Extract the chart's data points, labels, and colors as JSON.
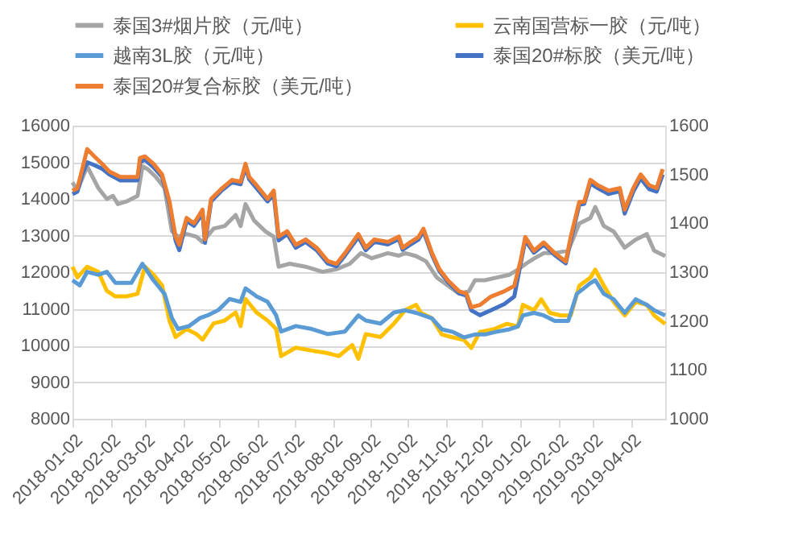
{
  "chart_data": {
    "type": "line",
    "xlim": [
      "2018-01-02",
      "2019-04-30"
    ],
    "xticks": [
      "2018-01-02",
      "2018-02-02",
      "2018-03-02",
      "2018-04-02",
      "2018-05-02",
      "2018-06-02",
      "2018-07-02",
      "2018-08-02",
      "2018-09-02",
      "2018-10-02",
      "2018-11-02",
      "2018-12-02",
      "2019-01-02",
      "2019-02-02",
      "2019-03-02",
      "2019-04-02"
    ],
    "ylim": [
      8000,
      16000
    ],
    "yticks": [
      8000,
      9000,
      10000,
      11000,
      12000,
      13000,
      14000,
      15000,
      16000
    ],
    "y2lim": [
      1000,
      1600
    ],
    "y2ticks": [
      1000,
      1100,
      1200,
      1300,
      1400,
      1500,
      1600
    ],
    "grid": "y",
    "legend": "top",
    "marker": "none",
    "line_style": "solid",
    "series": [
      {
        "name": "泰国3#烟片胶（元/吨）",
        "color": "#a5a5a5",
        "x": [
          "2018-01-02",
          "2018-01-06",
          "2018-01-14",
          "2018-01-23",
          "2018-01-30",
          "2018-02-04",
          "2018-02-08",
          "2018-02-15",
          "2018-02-24",
          "2018-02-28",
          "2018-03-04",
          "2018-03-11",
          "2018-03-18",
          "2018-03-24",
          "2018-03-29",
          "2018-04-05",
          "2018-04-13",
          "2018-04-18",
          "2018-04-27",
          "2018-05-06",
          "2018-05-15",
          "2018-05-19",
          "2018-05-23",
          "2018-05-30",
          "2018-06-08",
          "2018-06-15",
          "2018-06-19",
          "2018-06-28",
          "2018-07-11",
          "2018-07-25",
          "2018-08-05",
          "2018-08-16",
          "2018-08-25",
          "2018-09-03",
          "2018-09-16",
          "2018-09-25",
          "2018-09-30",
          "2018-10-09",
          "2018-10-17",
          "2018-10-26",
          "2018-11-04",
          "2018-11-13",
          "2018-11-21",
          "2018-11-26",
          "2018-12-04",
          "2018-12-13",
          "2018-12-24",
          "2018-12-31",
          "2019-01-06",
          "2019-01-13",
          "2019-01-21",
          "2019-01-30",
          "2019-02-10",
          "2019-02-19",
          "2019-02-28",
          "2019-03-04",
          "2019-03-11",
          "2019-03-19",
          "2019-03-28",
          "2019-04-06",
          "2019-04-15",
          "2019-04-21",
          "2019-04-30"
        ],
        "values": [
          14450,
          14230,
          14890,
          14300,
          14000,
          14080,
          13860,
          13930,
          14080,
          14890,
          14820,
          14600,
          14300,
          13120,
          12970,
          13040,
          12970,
          12820,
          13190,
          13260,
          13560,
          13260,
          13860,
          13410,
          13120,
          12970,
          12150,
          12230,
          12150,
          12010,
          12080,
          12230,
          12520,
          12380,
          12520,
          12450,
          12520,
          12440,
          12300,
          11850,
          11630,
          11410,
          11480,
          11780,
          11780,
          11850,
          11930,
          12070,
          12220,
          12370,
          12520,
          12520,
          12590,
          13330,
          13480,
          13780,
          13260,
          13110,
          12670,
          12890,
          13040,
          12590,
          12440
        ]
      },
      {
        "name": "云南国营标一胶（元/吨）",
        "color": "#ffc000",
        "x": [
          "2018-01-02",
          "2018-01-06",
          "2018-01-14",
          "2018-01-23",
          "2018-01-30",
          "2018-02-06",
          "2018-02-15",
          "2018-02-24",
          "2018-03-02",
          "2018-03-09",
          "2018-03-16",
          "2018-03-22",
          "2018-03-27",
          "2018-04-05",
          "2018-04-13",
          "2018-04-18",
          "2018-04-27",
          "2018-05-06",
          "2018-05-15",
          "2018-05-19",
          "2018-05-23",
          "2018-06-01",
          "2018-06-10",
          "2018-06-17",
          "2018-06-21",
          "2018-07-03",
          "2018-07-16",
          "2018-07-29",
          "2018-08-07",
          "2018-08-18",
          "2018-08-23",
          "2018-08-29",
          "2018-09-10",
          "2018-09-21",
          "2018-09-30",
          "2018-10-09",
          "2018-10-13",
          "2018-10-22",
          "2018-10-30",
          "2018-11-08",
          "2018-11-17",
          "2018-11-23",
          "2018-11-30",
          "2018-12-11",
          "2018-12-22",
          "2018-12-31",
          "2019-01-04",
          "2019-01-13",
          "2019-01-19",
          "2019-01-26",
          "2019-02-04",
          "2019-02-12",
          "2019-02-19",
          "2019-02-28",
          "2019-03-04",
          "2019-03-11",
          "2019-03-19",
          "2019-03-28",
          "2019-04-06",
          "2019-04-15",
          "2019-04-21",
          "2019-04-30"
        ],
        "values": [
          12150,
          11860,
          12150,
          12010,
          11490,
          11340,
          11340,
          11410,
          12150,
          11930,
          11640,
          10680,
          10230,
          10450,
          10310,
          10160,
          10600,
          10680,
          10900,
          10530,
          11270,
          10900,
          10680,
          10450,
          9710,
          9940,
          9860,
          9790,
          9710,
          10010,
          9640,
          10310,
          10230,
          10600,
          10960,
          11110,
          10890,
          10740,
          10300,
          10220,
          10150,
          9930,
          10370,
          10440,
          10590,
          10520,
          11110,
          10960,
          11260,
          10890,
          10820,
          10820,
          11630,
          11850,
          12070,
          11630,
          11190,
          10820,
          11190,
          11110,
          10820,
          10590
        ]
      },
      {
        "name": "越南3L胶（元/吨）",
        "color": "#5b9bd5",
        "x": [
          "2018-01-02",
          "2018-01-08",
          "2018-01-14",
          "2018-01-23",
          "2018-01-30",
          "2018-02-06",
          "2018-02-19",
          "2018-02-28",
          "2018-03-09",
          "2018-03-18",
          "2018-03-24",
          "2018-03-29",
          "2018-04-07",
          "2018-04-16",
          "2018-04-22",
          "2018-05-01",
          "2018-05-10",
          "2018-05-19",
          "2018-05-23",
          "2018-06-01",
          "2018-06-10",
          "2018-06-17",
          "2018-06-21",
          "2018-07-03",
          "2018-07-16",
          "2018-07-29",
          "2018-08-12",
          "2018-08-23",
          "2018-08-29",
          "2018-09-10",
          "2018-09-21",
          "2018-09-30",
          "2018-10-09",
          "2018-10-22",
          "2018-10-30",
          "2018-11-08",
          "2018-11-17",
          "2018-11-26",
          "2018-12-04",
          "2018-12-13",
          "2018-12-24",
          "2018-12-31",
          "2019-01-04",
          "2019-01-13",
          "2019-01-21",
          "2019-01-30",
          "2019-02-10",
          "2019-02-17",
          "2019-02-28",
          "2019-03-04",
          "2019-03-11",
          "2019-03-19",
          "2019-03-28",
          "2019-04-06",
          "2019-04-15",
          "2019-04-21",
          "2019-04-30"
        ],
        "values": [
          11780,
          11640,
          12010,
          11930,
          12010,
          11710,
          11710,
          12230,
          11780,
          11410,
          10750,
          10450,
          10530,
          10750,
          10820,
          10970,
          11270,
          11190,
          11560,
          11340,
          11190,
          10820,
          10380,
          10530,
          10450,
          10310,
          10380,
          10820,
          10680,
          10600,
          10900,
          10960,
          10890,
          10740,
          10440,
          10370,
          10220,
          10300,
          10300,
          10370,
          10440,
          10520,
          10820,
          10890,
          10820,
          10670,
          10670,
          11410,
          11700,
          11780,
          11410,
          11260,
          10890,
          11260,
          11110,
          10960,
          10820
        ]
      },
      {
        "name": "泰国20#标胶（美元/吨）",
        "color": "#4472c4",
        "axis": "y2",
        "x": [
          "2018-01-02",
          "2018-01-06",
          "2018-01-10",
          "2018-01-14",
          "2018-01-19",
          "2018-01-26",
          "2018-02-01",
          "2018-02-10",
          "2018-02-24",
          "2018-02-26",
          "2018-03-02",
          "2018-03-09",
          "2018-03-16",
          "2018-03-22",
          "2018-03-27",
          "2018-03-30",
          "2018-04-05",
          "2018-04-11",
          "2018-04-18",
          "2018-04-20",
          "2018-04-25",
          "2018-05-04",
          "2018-05-12",
          "2018-05-19",
          "2018-05-23",
          "2018-05-26",
          "2018-06-01",
          "2018-06-10",
          "2018-06-15",
          "2018-06-19",
          "2018-06-26",
          "2018-07-03",
          "2018-07-11",
          "2018-07-20",
          "2018-07-29",
          "2018-08-05",
          "2018-08-12",
          "2018-08-23",
          "2018-08-29",
          "2018-09-05",
          "2018-09-16",
          "2018-09-25",
          "2018-09-28",
          "2018-10-04",
          "2018-10-11",
          "2018-10-15",
          "2018-10-22",
          "2018-10-28",
          "2018-11-04",
          "2018-11-13",
          "2018-11-19",
          "2018-11-23",
          "2018-11-30",
          "2018-12-09",
          "2018-12-20",
          "2018-12-28",
          "2019-01-02",
          "2019-01-06",
          "2019-01-13",
          "2019-01-21",
          "2019-01-30",
          "2019-02-08",
          "2019-02-12",
          "2019-02-19",
          "2019-02-23",
          "2019-02-28",
          "2019-03-06",
          "2019-03-15",
          "2019-03-24",
          "2019-03-28",
          "2019-04-04",
          "2019-04-10",
          "2019-04-17",
          "2019-04-23",
          "2019-04-28"
        ],
        "values": [
          1460,
          1465,
          1500,
          1525,
          1520,
          1512,
          1500,
          1488,
          1488,
          1525,
          1530,
          1515,
          1495,
          1440,
          1365,
          1345,
          1405,
          1395,
          1420,
          1360,
          1445,
          1468,
          1484,
          1480,
          1515,
          1490,
          1472,
          1445,
          1460,
          1365,
          1378,
          1350,
          1362,
          1345,
          1318,
          1312,
          1334,
          1372,
          1345,
          1362,
          1357,
          1368,
          1346,
          1356,
          1367,
          1384,
          1335,
          1302,
          1280,
          1257,
          1252,
          1222,
          1212,
          1222,
          1235,
          1250,
          1315,
          1365,
          1340,
          1356,
          1335,
          1318,
          1365,
          1438,
          1440,
          1482,
          1472,
          1460,
          1466,
          1420,
          1465,
          1492,
          1470,
          1465,
          1500
        ]
      },
      {
        "name": "泰国20#复合标胶（美元/吨）",
        "color": "#ed7d31",
        "axis": "y2",
        "x": [
          "2018-01-02",
          "2018-01-06",
          "2018-01-10",
          "2018-01-14",
          "2018-01-19",
          "2018-01-26",
          "2018-02-01",
          "2018-02-10",
          "2018-02-24",
          "2018-02-26",
          "2018-03-02",
          "2018-03-09",
          "2018-03-16",
          "2018-03-22",
          "2018-03-27",
          "2018-03-30",
          "2018-04-05",
          "2018-04-11",
          "2018-04-18",
          "2018-04-20",
          "2018-04-25",
          "2018-05-04",
          "2018-05-12",
          "2018-05-19",
          "2018-05-23",
          "2018-05-26",
          "2018-06-01",
          "2018-06-10",
          "2018-06-15",
          "2018-06-19",
          "2018-06-26",
          "2018-07-03",
          "2018-07-11",
          "2018-07-20",
          "2018-07-29",
          "2018-08-05",
          "2018-08-12",
          "2018-08-23",
          "2018-08-29",
          "2018-09-05",
          "2018-09-16",
          "2018-09-25",
          "2018-09-28",
          "2018-10-04",
          "2018-10-11",
          "2018-10-15",
          "2018-10-22",
          "2018-10-28",
          "2018-11-04",
          "2018-11-13",
          "2018-11-19",
          "2018-11-23",
          "2018-11-30",
          "2018-12-09",
          "2018-12-20",
          "2018-12-28",
          "2019-01-02",
          "2019-01-06",
          "2019-01-13",
          "2019-01-21",
          "2019-01-30",
          "2019-02-08",
          "2019-02-12",
          "2019-02-19",
          "2019-02-23",
          "2019-02-28",
          "2019-03-06",
          "2019-03-15",
          "2019-03-24",
          "2019-03-28",
          "2019-04-04",
          "2019-04-10",
          "2019-04-17",
          "2019-04-23",
          "2019-04-28"
        ],
        "values": [
          1467,
          1472,
          1511,
          1552,
          1539,
          1522,
          1506,
          1495,
          1495,
          1534,
          1537,
          1522,
          1500,
          1445,
          1373,
          1356,
          1411,
          1400,
          1428,
          1367,
          1450,
          1472,
          1489,
          1485,
          1522,
          1495,
          1478,
          1450,
          1467,
          1373,
          1384,
          1356,
          1367,
          1350,
          1323,
          1317,
          1339,
          1378,
          1350,
          1367,
          1362,
          1373,
          1350,
          1361,
          1372,
          1389,
          1339,
          1306,
          1283,
          1261,
          1256,
          1228,
          1233,
          1250,
          1261,
          1272,
          1322,
          1372,
          1344,
          1361,
          1339,
          1322,
          1372,
          1444,
          1444,
          1489,
          1478,
          1467,
          1472,
          1428,
          1472,
          1500,
          1478,
          1472,
          1511
        ]
      }
    ]
  }
}
